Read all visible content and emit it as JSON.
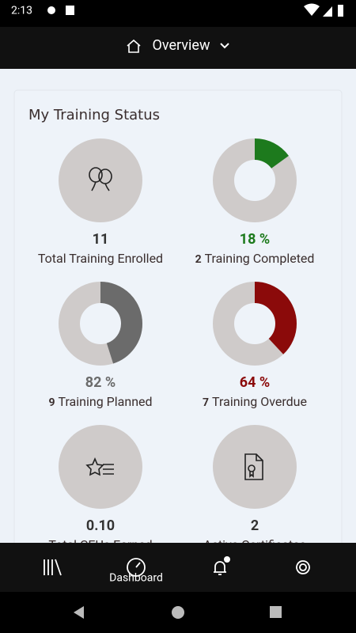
{
  "status_bar": {
    "time": "2:13"
  },
  "header": {
    "title": "Overview"
  },
  "card": {
    "title": "My Training Status",
    "tiles": [
      {
        "value": "11",
        "label": "Total Training Enrolled",
        "color": "#333333"
      },
      {
        "value": "18 %",
        "count": "2",
        "label": "Training Completed",
        "arc": 15,
        "color": "#1d7a1d"
      },
      {
        "value": "82 %",
        "count": "9",
        "label": "Training Planned",
        "arc": 45,
        "color": "#6b6b6b"
      },
      {
        "value": "64 %",
        "count": "7",
        "label": "Training Overdue",
        "arc": 38,
        "color": "#8b0a0a"
      },
      {
        "value": "0.10",
        "label": "Total CEUs Earned",
        "color": "#333333"
      },
      {
        "value": "2",
        "label": "Active Certificates",
        "color": "#333333"
      }
    ]
  },
  "nav": {
    "active": "Dashboard"
  }
}
